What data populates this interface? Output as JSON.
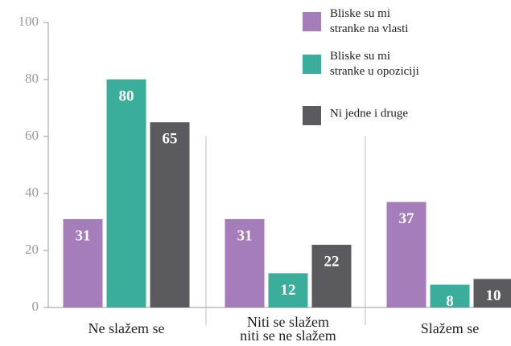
{
  "chart_data": {
    "type": "bar",
    "categories": [
      "Ne slažem se",
      "Niti se slažem\nniti se ne slažem",
      "Slažem se"
    ],
    "series": [
      {
        "name": "Bliske su mi\nstranke na vlasti",
        "color": "#a57dba",
        "values": [
          31,
          31,
          37
        ]
      },
      {
        "name": "Bliske su mi\nstranke u opoziciji",
        "color": "#3aae9a",
        "values": [
          80,
          12,
          8
        ]
      },
      {
        "name": "Ni jedne i druge",
        "color": "#5b5b5f",
        "values": [
          65,
          22,
          10
        ]
      }
    ],
    "ylim": [
      0,
      100
    ],
    "yticks": [
      0,
      20,
      40,
      60,
      80,
      100
    ],
    "grid": false
  }
}
